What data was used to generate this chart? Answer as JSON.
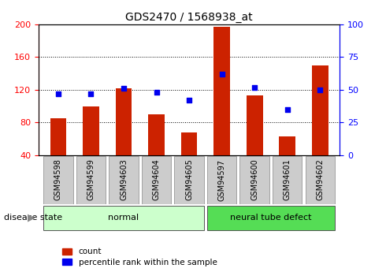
{
  "title": "GDS2470 / 1568938_at",
  "samples": [
    "GSM94598",
    "GSM94599",
    "GSM94603",
    "GSM94604",
    "GSM94605",
    "GSM94597",
    "GSM94600",
    "GSM94601",
    "GSM94602"
  ],
  "counts": [
    85,
    100,
    122,
    90,
    68,
    197,
    113,
    63,
    150
  ],
  "percentiles": [
    47,
    47,
    51,
    48,
    42,
    62,
    52,
    35,
    50
  ],
  "bar_color": "#CC2200",
  "dot_color": "#0000EE",
  "ylim_left": [
    40,
    200
  ],
  "ylim_right": [
    0,
    100
  ],
  "yticks_left": [
    40,
    80,
    120,
    160,
    200
  ],
  "yticks_right": [
    0,
    25,
    50,
    75,
    100
  ],
  "groups": [
    {
      "label": "normal",
      "indices": [
        0,
        1,
        2,
        3,
        4
      ],
      "color": "#CCFFCC"
    },
    {
      "label": "neural tube defect",
      "indices": [
        5,
        6,
        7,
        8
      ],
      "color": "#55DD55"
    }
  ],
  "disease_state_label": "disease state",
  "legend_count_label": "count",
  "legend_percentile_label": "percentile rank within the sample",
  "tick_bg_color": "#CCCCCC",
  "grid_color": "#000000",
  "title_fontsize": 10,
  "tick_fontsize": 7,
  "bar_width": 0.5
}
